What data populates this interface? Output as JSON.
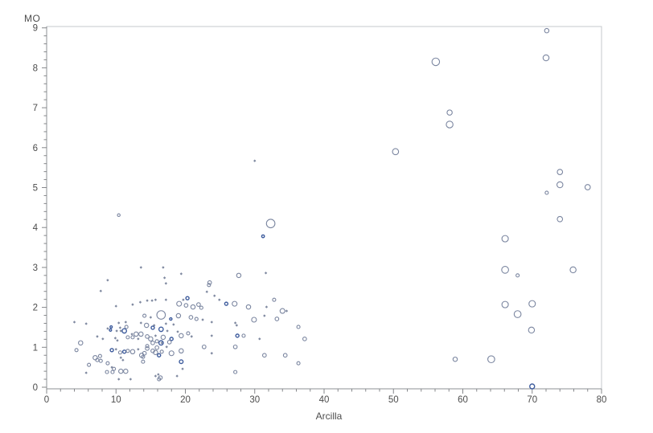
{
  "chart_data": {
    "type": "scatter",
    "subtype": "bubble",
    "title": "",
    "xlabel": "Arcilla",
    "ylabel": "MO",
    "xlim": [
      0,
      80
    ],
    "ylim": [
      0,
      9
    ],
    "x_major_ticks": [
      0,
      10,
      20,
      30,
      40,
      50,
      60,
      70,
      80
    ],
    "x_minor_step": 2,
    "y_major_ticks": [
      0,
      1,
      2,
      3,
      4,
      5,
      6,
      7,
      8,
      9
    ],
    "y_minor_step": 0.2,
    "grid": false,
    "legend": false,
    "style": {
      "frame_color": "#c6c9cd",
      "axis_color": "#8e9196",
      "tick_color": "#85878a",
      "tick_label_color": "#4c4c4c",
      "circle_stroke": "#7b86a0",
      "dark_circle_stroke": "#3e5c9d",
      "dot_fill": "#7f89a0",
      "background": "#ffffff"
    },
    "point_format": "[x, y, radius_px, style] where style 0=open circle, 1=dark blue circle, 2=tiny dot marker",
    "points": [
      [
        56.1,
        8.15,
        4.7,
        0
      ],
      [
        58.1,
        6.88,
        3.2,
        0
      ],
      [
        58.1,
        6.58,
        4.2,
        0
      ],
      [
        50.3,
        5.9,
        3.8,
        0
      ],
      [
        72.1,
        8.93,
        2.7,
        0
      ],
      [
        72.0,
        8.25,
        3.7,
        0
      ],
      [
        74.0,
        5.39,
        3.3,
        0
      ],
      [
        74.0,
        5.07,
        3.7,
        0
      ],
      [
        72.1,
        4.87,
        2.0,
        0
      ],
      [
        78.0,
        5.01,
        3.3,
        0
      ],
      [
        74.0,
        4.21,
        3.3,
        0
      ],
      [
        66.1,
        3.72,
        4.0,
        0
      ],
      [
        66.1,
        2.94,
        4.3,
        0
      ],
      [
        67.9,
        2.8,
        2.0,
        0
      ],
      [
        75.9,
        2.94,
        3.7,
        0
      ],
      [
        66.1,
        2.07,
        4.0,
        0
      ],
      [
        70.0,
        2.09,
        4.0,
        0
      ],
      [
        67.9,
        1.83,
        4.3,
        0
      ],
      [
        69.9,
        1.43,
        3.7,
        0
      ],
      [
        58.9,
        0.7,
        2.7,
        0
      ],
      [
        64.1,
        0.7,
        4.3,
        0
      ],
      [
        70.0,
        0.02,
        3.0,
        1
      ],
      [
        30.0,
        5.67,
        1.2,
        2
      ],
      [
        32.3,
        4.1,
        5.3,
        0
      ],
      [
        31.2,
        3.78,
        1.7,
        1
      ],
      [
        10.4,
        4.31,
        1.7,
        0
      ],
      [
        27.7,
        2.8,
        2.7,
        0
      ],
      [
        13.6,
        3.0,
        1.2,
        2
      ],
      [
        8.8,
        2.68,
        1.2,
        2
      ],
      [
        7.8,
        2.41,
        1.2,
        2
      ],
      [
        10.0,
        2.03,
        1.2,
        2
      ],
      [
        12.4,
        2.07,
        1.2,
        2
      ],
      [
        13.5,
        2.13,
        1.2,
        2
      ],
      [
        14.5,
        2.17,
        1.2,
        2
      ],
      [
        5.7,
        1.59,
        1.2,
        2
      ],
      [
        7.3,
        1.27,
        1.2,
        2
      ],
      [
        8.8,
        1.47,
        1.2,
        2
      ],
      [
        9.3,
        1.51,
        1.4,
        1
      ],
      [
        10.6,
        1.49,
        1.2,
        2
      ],
      [
        16.8,
        3.0,
        1.2,
        2
      ],
      [
        19.4,
        2.84,
        1.2,
        2
      ],
      [
        17.0,
        2.74,
        1.2,
        2
      ],
      [
        17.2,
        2.6,
        1.2,
        2
      ],
      [
        23.5,
        2.62,
        2.3,
        0
      ],
      [
        23.1,
        2.39,
        1.2,
        2
      ],
      [
        15.2,
        2.17,
        1.2,
        2
      ],
      [
        15.7,
        2.19,
        1.2,
        2
      ],
      [
        17.2,
        2.19,
        1.2,
        2
      ],
      [
        19.7,
        2.19,
        1.2,
        2
      ],
      [
        20.3,
        2.23,
        2.0,
        1
      ],
      [
        19.1,
        2.09,
        3.0,
        0
      ],
      [
        20.1,
        2.05,
        2.3,
        0
      ],
      [
        21.1,
        2.01,
        2.7,
        0
      ],
      [
        21.9,
        2.07,
        2.3,
        0
      ],
      [
        22.3,
        1.99,
        2.0,
        0
      ],
      [
        16.5,
        1.81,
        5.3,
        0
      ],
      [
        17.9,
        1.71,
        1.5,
        1
      ],
      [
        19.0,
        1.79,
        2.7,
        0
      ],
      [
        20.8,
        1.75,
        2.3,
        0
      ],
      [
        21.6,
        1.71,
        2.0,
        0
      ],
      [
        22.5,
        1.69,
        1.2,
        2
      ],
      [
        15.0,
        1.75,
        1.2,
        2
      ],
      [
        14.1,
        1.79,
        2.0,
        0
      ],
      [
        15.5,
        1.55,
        1.2,
        2
      ],
      [
        17.2,
        1.59,
        1.2,
        2
      ],
      [
        18.3,
        1.57,
        1.2,
        2
      ],
      [
        16.5,
        1.45,
        2.7,
        1
      ],
      [
        17.4,
        1.41,
        1.2,
        2
      ],
      [
        18.9,
        1.39,
        1.2,
        2
      ],
      [
        15.7,
        1.29,
        1.2,
        2
      ],
      [
        14.5,
        1.27,
        2.3,
        0
      ],
      [
        16.8,
        1.25,
        2.7,
        0
      ],
      [
        18.0,
        1.21,
        2.0,
        1
      ],
      [
        19.4,
        1.29,
        2.7,
        0
      ],
      [
        20.4,
        1.35,
        2.0,
        0
      ],
      [
        20.9,
        1.27,
        1.2,
        2
      ],
      [
        15.3,
        1.11,
        2.3,
        0
      ],
      [
        16.5,
        1.11,
        2.7,
        1
      ],
      [
        17.7,
        1.13,
        2.3,
        0
      ],
      [
        14.5,
        1.03,
        2.0,
        0
      ],
      [
        15.9,
        0.99,
        2.3,
        0
      ],
      [
        17.3,
        1.01,
        1.2,
        2
      ],
      [
        15.7,
        0.87,
        2.7,
        0
      ],
      [
        18.0,
        0.85,
        3.0,
        0
      ],
      [
        19.4,
        0.91,
        2.7,
        0
      ],
      [
        14.1,
        0.85,
        2.3,
        0
      ],
      [
        19.4,
        0.64,
        2.3,
        1
      ],
      [
        19.6,
        0.46,
        1.2,
        2
      ],
      [
        16.1,
        0.32,
        1.2,
        2
      ],
      [
        16.4,
        0.24,
        2.3,
        0
      ],
      [
        18.8,
        0.28,
        1.2,
        2
      ],
      [
        22.7,
        1.01,
        2.3,
        0
      ],
      [
        23.8,
        0.85,
        1.2,
        2
      ],
      [
        4.0,
        1.63,
        1.2,
        2
      ],
      [
        10.4,
        1.61,
        1.2,
        2
      ],
      [
        11.4,
        1.63,
        1.2,
        2
      ],
      [
        13.6,
        1.61,
        1.2,
        2
      ],
      [
        14.4,
        1.55,
        2.7,
        0
      ],
      [
        15.3,
        1.49,
        2.0,
        1
      ],
      [
        9.2,
        1.43,
        1.4,
        1
      ],
      [
        10.1,
        1.41,
        1.2,
        2
      ],
      [
        10.7,
        1.41,
        1.2,
        2
      ],
      [
        11.2,
        1.41,
        2.7,
        1
      ],
      [
        11.5,
        1.51,
        2.0,
        0
      ],
      [
        12.9,
        1.33,
        2.7,
        0
      ],
      [
        13.6,
        1.33,
        2.7,
        0
      ],
      [
        12.3,
        1.33,
        1.2,
        2
      ],
      [
        4.9,
        1.11,
        2.7,
        0
      ],
      [
        8.1,
        1.21,
        1.2,
        2
      ],
      [
        9.9,
        1.23,
        1.2,
        2
      ],
      [
        10.2,
        1.17,
        1.2,
        2
      ],
      [
        11.7,
        1.25,
        2.0,
        0
      ],
      [
        12.4,
        1.25,
        2.0,
        0
      ],
      [
        13.2,
        1.21,
        1.2,
        2
      ],
      [
        15.0,
        1.21,
        2.7,
        0
      ],
      [
        15.9,
        1.15,
        2.0,
        0
      ],
      [
        16.6,
        1.11,
        1.2,
        2
      ],
      [
        7.0,
        0.74,
        2.7,
        0
      ],
      [
        7.7,
        0.78,
        2.0,
        0
      ],
      [
        7.3,
        0.68,
        2.0,
        0
      ],
      [
        7.8,
        0.66,
        2.0,
        0
      ],
      [
        6.1,
        0.56,
        2.0,
        0
      ],
      [
        8.8,
        0.6,
        2.0,
        0
      ],
      [
        9.4,
        0.93,
        2.0,
        1
      ],
      [
        10.0,
        0.95,
        1.2,
        2
      ],
      [
        10.6,
        0.87,
        2.0,
        0
      ],
      [
        11.2,
        0.89,
        2.0,
        1
      ],
      [
        10.7,
        0.74,
        1.2,
        2
      ],
      [
        11.0,
        0.68,
        1.2,
        2
      ],
      [
        11.7,
        0.91,
        2.0,
        0
      ],
      [
        12.4,
        0.89,
        2.7,
        0
      ],
      [
        13.2,
        0.95,
        1.2,
        2
      ],
      [
        14.5,
        0.97,
        2.3,
        0
      ],
      [
        15.3,
        0.91,
        2.3,
        0
      ],
      [
        13.7,
        0.8,
        2.7,
        0
      ],
      [
        13.9,
        0.76,
        2.0,
        0
      ],
      [
        13.9,
        0.64,
        2.0,
        0
      ],
      [
        16.2,
        0.8,
        2.0,
        1
      ],
      [
        16.6,
        0.89,
        2.0,
        0
      ],
      [
        5.7,
        0.36,
        1.2,
        2
      ],
      [
        9.7,
        0.46,
        2.0,
        0
      ],
      [
        10.7,
        0.4,
        2.7,
        0
      ],
      [
        11.4,
        0.4,
        2.7,
        0
      ],
      [
        9.4,
        0.5,
        1.2,
        2
      ],
      [
        15.7,
        0.28,
        1.2,
        2
      ],
      [
        16.2,
        0.2,
        2.0,
        0
      ],
      [
        12.1,
        0.2,
        1.2,
        2
      ],
      [
        8.7,
        0.38,
        2.0,
        0
      ],
      [
        9.5,
        0.38,
        2.0,
        0
      ],
      [
        10.4,
        0.2,
        1.2,
        2
      ],
      [
        4.3,
        0.93,
        2.0,
        0
      ],
      [
        24.2,
        2.29,
        1.2,
        2
      ],
      [
        23.4,
        2.56,
        2.0,
        0
      ],
      [
        24.9,
        2.19,
        1.2,
        2
      ],
      [
        25.9,
        2.09,
        2.0,
        1
      ],
      [
        27.1,
        2.09,
        3.0,
        0
      ],
      [
        29.1,
        2.01,
        2.7,
        0
      ],
      [
        31.7,
        2.01,
        1.2,
        2
      ],
      [
        32.8,
        2.19,
        2.0,
        0
      ],
      [
        31.6,
        2.86,
        1.2,
        2
      ],
      [
        34.0,
        1.91,
        3.0,
        0
      ],
      [
        34.6,
        1.91,
        1.2,
        2
      ],
      [
        29.9,
        1.69,
        3.0,
        0
      ],
      [
        31.4,
        1.79,
        1.2,
        2
      ],
      [
        33.2,
        1.71,
        2.3,
        0
      ],
      [
        23.8,
        1.63,
        1.2,
        2
      ],
      [
        27.2,
        1.61,
        1.2,
        2
      ],
      [
        27.4,
        1.55,
        1.2,
        2
      ],
      [
        36.3,
        1.51,
        2.0,
        0
      ],
      [
        37.2,
        1.21,
        2.3,
        0
      ],
      [
        23.8,
        1.29,
        1.2,
        2
      ],
      [
        27.5,
        1.29,
        2.0,
        1
      ],
      [
        28.4,
        1.29,
        2.0,
        0
      ],
      [
        30.7,
        1.21,
        1.2,
        2
      ],
      [
        27.2,
        1.01,
        2.3,
        0
      ],
      [
        31.4,
        0.8,
        2.3,
        0
      ],
      [
        34.4,
        0.8,
        2.3,
        0
      ],
      [
        36.3,
        0.6,
        2.0,
        0
      ],
      [
        27.2,
        0.38,
        2.0,
        0
      ]
    ]
  }
}
